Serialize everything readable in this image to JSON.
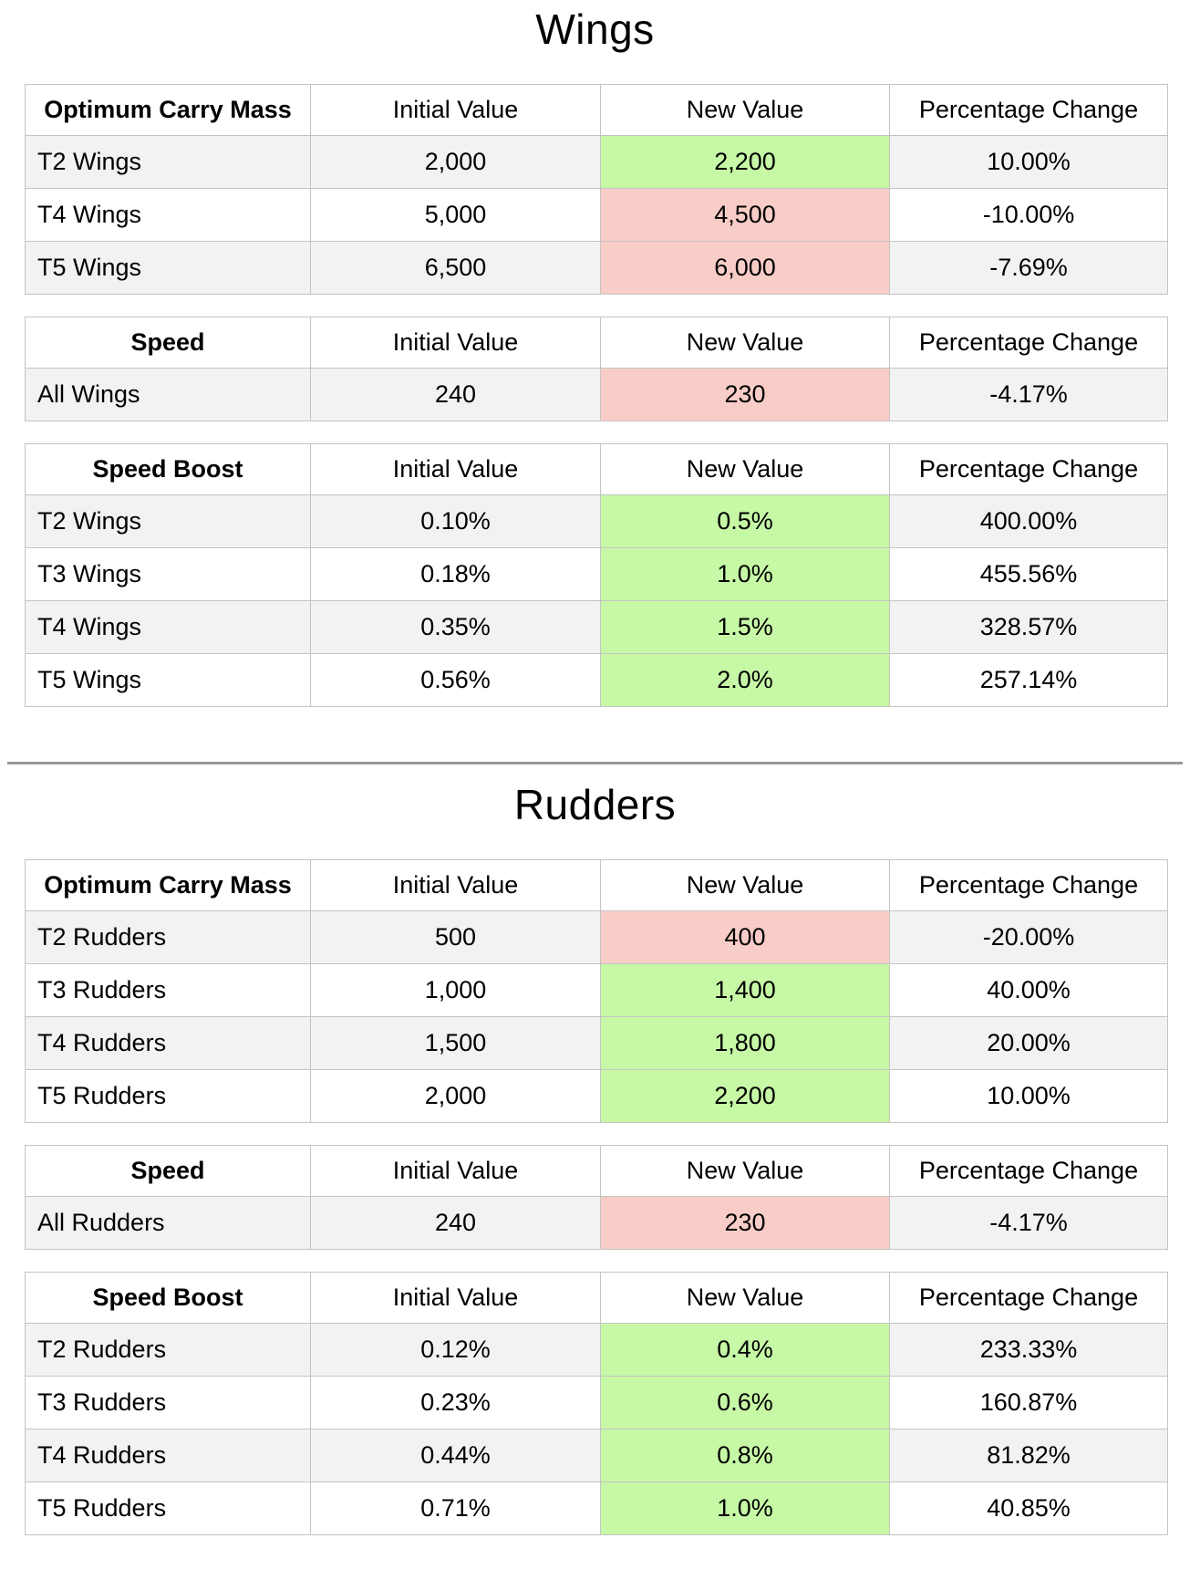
{
  "colors": {
    "increase_bg": "#c6f8a6",
    "decrease_bg": "#f9cdc7",
    "stripe_bg": "#f2f2f2",
    "border": "#c4c4c4",
    "divider": "#999999"
  },
  "sections": [
    {
      "title": "Wings",
      "tables": [
        {
          "category": "Optimum Carry Mass",
          "columns": [
            "Initial Value",
            "New Value",
            "Percentage Change"
          ],
          "rows": [
            {
              "label": "T2 Wings",
              "initial_value": "2,000",
              "new_value": "2,200",
              "percentage_change": "10.00%",
              "change_direction": "increase"
            },
            {
              "label": "T4 Wings",
              "initial_value": "5,000",
              "new_value": "4,500",
              "percentage_change": "-10.00%",
              "change_direction": "decrease"
            },
            {
              "label": "T5 Wings",
              "initial_value": "6,500",
              "new_value": "6,000",
              "percentage_change": "-7.69%",
              "change_direction": "decrease"
            }
          ]
        },
        {
          "category": "Speed",
          "columns": [
            "Initial Value",
            "New Value",
            "Percentage Change"
          ],
          "rows": [
            {
              "label": "All Wings",
              "initial_value": "240",
              "new_value": "230",
              "percentage_change": "-4.17%",
              "change_direction": "decrease"
            }
          ]
        },
        {
          "category": "Speed Boost",
          "columns": [
            "Initial Value",
            "New Value",
            "Percentage Change"
          ],
          "rows": [
            {
              "label": "T2 Wings",
              "initial_value": "0.10%",
              "new_value": "0.5%",
              "percentage_change": "400.00%",
              "change_direction": "increase"
            },
            {
              "label": "T3 Wings",
              "initial_value": "0.18%",
              "new_value": "1.0%",
              "percentage_change": "455.56%",
              "change_direction": "increase"
            },
            {
              "label": "T4 Wings",
              "initial_value": "0.35%",
              "new_value": "1.5%",
              "percentage_change": "328.57%",
              "change_direction": "increase"
            },
            {
              "label": "T5 Wings",
              "initial_value": "0.56%",
              "new_value": "2.0%",
              "percentage_change": "257.14%",
              "change_direction": "increase"
            }
          ]
        }
      ]
    },
    {
      "title": "Rudders",
      "tables": [
        {
          "category": "Optimum Carry Mass",
          "columns": [
            "Initial Value",
            "New Value",
            "Percentage Change"
          ],
          "rows": [
            {
              "label": "T2 Rudders",
              "initial_value": "500",
              "new_value": "400",
              "percentage_change": "-20.00%",
              "change_direction": "decrease"
            },
            {
              "label": "T3 Rudders",
              "initial_value": "1,000",
              "new_value": "1,400",
              "percentage_change": "40.00%",
              "change_direction": "increase"
            },
            {
              "label": "T4 Rudders",
              "initial_value": "1,500",
              "new_value": "1,800",
              "percentage_change": "20.00%",
              "change_direction": "increase"
            },
            {
              "label": "T5 Rudders",
              "initial_value": "2,000",
              "new_value": "2,200",
              "percentage_change": "10.00%",
              "change_direction": "increase"
            }
          ]
        },
        {
          "category": "Speed",
          "columns": [
            "Initial Value",
            "New Value",
            "Percentage Change"
          ],
          "rows": [
            {
              "label": "All Rudders",
              "initial_value": "240",
              "new_value": "230",
              "percentage_change": "-4.17%",
              "change_direction": "decrease"
            }
          ]
        },
        {
          "category": "Speed Boost",
          "columns": [
            "Initial Value",
            "New Value",
            "Percentage Change"
          ],
          "rows": [
            {
              "label": "T2 Rudders",
              "initial_value": "0.12%",
              "new_value": "0.4%",
              "percentage_change": "233.33%",
              "change_direction": "increase"
            },
            {
              "label": "T3 Rudders",
              "initial_value": "0.23%",
              "new_value": "0.6%",
              "percentage_change": "160.87%",
              "change_direction": "increase"
            },
            {
              "label": "T4 Rudders",
              "initial_value": "0.44%",
              "new_value": "0.8%",
              "percentage_change": "81.82%",
              "change_direction": "increase"
            },
            {
              "label": "T5 Rudders",
              "initial_value": "0.71%",
              "new_value": "1.0%",
              "percentage_change": "40.85%",
              "change_direction": "increase"
            }
          ]
        }
      ]
    }
  ]
}
